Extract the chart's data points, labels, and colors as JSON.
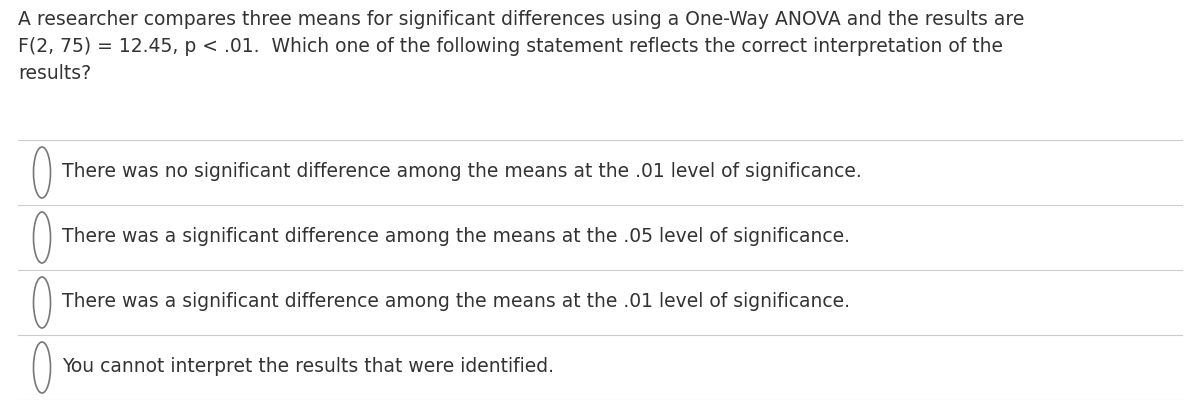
{
  "background_color": "#ffffff",
  "question_lines": [
    "A researcher compares three means for significant differences using a One-Way ANOVA and the results are",
    "F(2, 75) = 12.45, p < .01.  Which one of the following statement reflects the correct interpretation of the",
    "results?"
  ],
  "options": [
    "There was no significant difference among the means at the .01 level of significance.",
    "There was a significant difference among the means at the .05 level of significance.",
    "There was a significant difference among the means at the .01 level of significance.",
    "You cannot interpret the results that were identified."
  ],
  "text_color": "#333333",
  "line_color": "#cccccc",
  "circle_edge_color": "#777777",
  "question_fontsize": 13.5,
  "option_fontsize": 13.5,
  "fig_width": 12.0,
  "fig_height": 4.0,
  "dpi": 100
}
